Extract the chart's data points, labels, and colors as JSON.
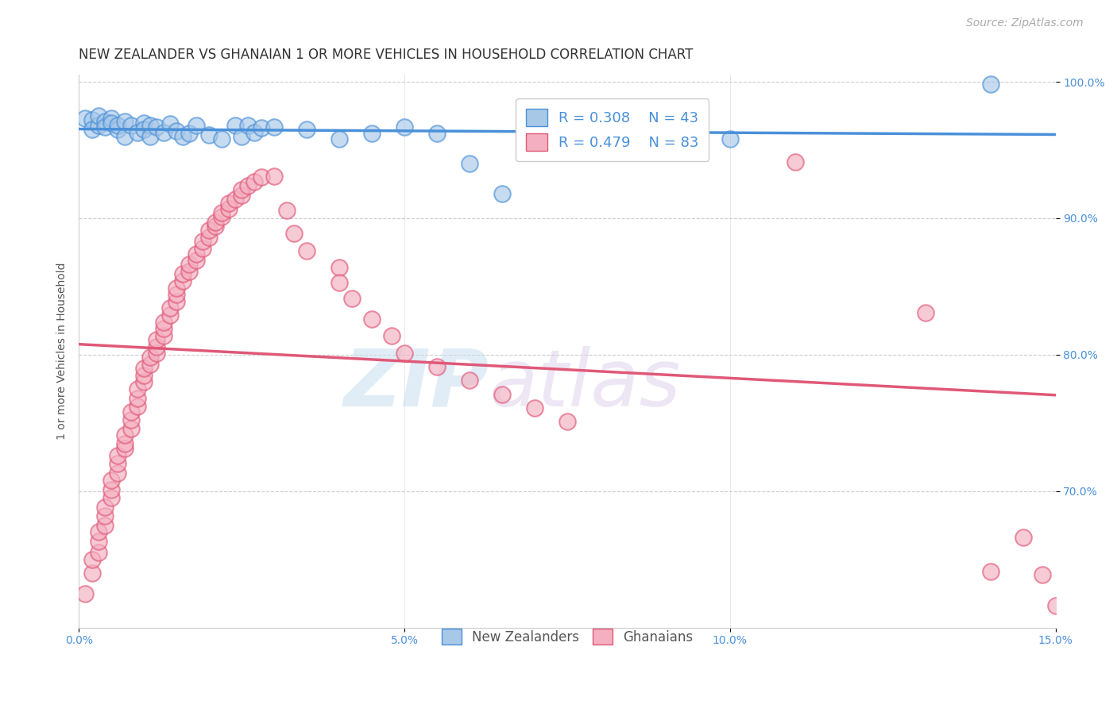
{
  "title": "NEW ZEALANDER VS GHANAIAN 1 OR MORE VEHICLES IN HOUSEHOLD CORRELATION CHART",
  "source": "Source: ZipAtlas.com",
  "ylabel": "1 or more Vehicles in Household",
  "watermark_zip": "ZIP",
  "watermark_atlas": "atlas",
  "legend_nz": "New Zealanders",
  "legend_gh": "Ghanaians",
  "nz_R": "0.308",
  "nz_N": "43",
  "gh_R": "0.479",
  "gh_N": "83",
  "nz_color": "#a8c8e8",
  "gh_color": "#f4b0c0",
  "nz_line_color": "#4a90d9",
  "gh_line_color": "#e05878",
  "background_color": "#ffffff",
  "nz_scatter": [
    [
      0.001,
      0.973
    ],
    [
      0.002,
      0.972
    ],
    [
      0.002,
      0.965
    ],
    [
      0.003,
      0.968
    ],
    [
      0.003,
      0.975
    ],
    [
      0.004,
      0.971
    ],
    [
      0.004,
      0.967
    ],
    [
      0.005,
      0.973
    ],
    [
      0.005,
      0.97
    ],
    [
      0.006,
      0.965
    ],
    [
      0.006,
      0.968
    ],
    [
      0.007,
      0.971
    ],
    [
      0.007,
      0.96
    ],
    [
      0.008,
      0.968
    ],
    [
      0.009,
      0.963
    ],
    [
      0.01,
      0.97
    ],
    [
      0.01,
      0.965
    ],
    [
      0.011,
      0.968
    ],
    [
      0.011,
      0.96
    ],
    [
      0.012,
      0.967
    ],
    [
      0.013,
      0.963
    ],
    [
      0.014,
      0.969
    ],
    [
      0.015,
      0.964
    ],
    [
      0.016,
      0.96
    ],
    [
      0.017,
      0.962
    ],
    [
      0.018,
      0.968
    ],
    [
      0.02,
      0.961
    ],
    [
      0.022,
      0.958
    ],
    [
      0.024,
      0.968
    ],
    [
      0.025,
      0.96
    ],
    [
      0.026,
      0.968
    ],
    [
      0.027,
      0.963
    ],
    [
      0.028,
      0.966
    ],
    [
      0.03,
      0.967
    ],
    [
      0.035,
      0.965
    ],
    [
      0.04,
      0.958
    ],
    [
      0.045,
      0.962
    ],
    [
      0.05,
      0.967
    ],
    [
      0.055,
      0.962
    ],
    [
      0.06,
      0.94
    ],
    [
      0.065,
      0.918
    ],
    [
      0.1,
      0.958
    ],
    [
      0.14,
      0.998
    ]
  ],
  "gh_scatter": [
    [
      0.001,
      0.625
    ],
    [
      0.002,
      0.64
    ],
    [
      0.002,
      0.65
    ],
    [
      0.003,
      0.655
    ],
    [
      0.003,
      0.663
    ],
    [
      0.003,
      0.67
    ],
    [
      0.004,
      0.675
    ],
    [
      0.004,
      0.682
    ],
    [
      0.004,
      0.688
    ],
    [
      0.005,
      0.695
    ],
    [
      0.005,
      0.701
    ],
    [
      0.005,
      0.708
    ],
    [
      0.006,
      0.713
    ],
    [
      0.006,
      0.72
    ],
    [
      0.006,
      0.726
    ],
    [
      0.007,
      0.731
    ],
    [
      0.007,
      0.735
    ],
    [
      0.007,
      0.741
    ],
    [
      0.008,
      0.746
    ],
    [
      0.008,
      0.752
    ],
    [
      0.008,
      0.758
    ],
    [
      0.009,
      0.762
    ],
    [
      0.009,
      0.768
    ],
    [
      0.009,
      0.775
    ],
    [
      0.01,
      0.78
    ],
    [
      0.01,
      0.785
    ],
    [
      0.01,
      0.79
    ],
    [
      0.011,
      0.793
    ],
    [
      0.011,
      0.798
    ],
    [
      0.012,
      0.801
    ],
    [
      0.012,
      0.806
    ],
    [
      0.012,
      0.811
    ],
    [
      0.013,
      0.814
    ],
    [
      0.013,
      0.819
    ],
    [
      0.013,
      0.824
    ],
    [
      0.014,
      0.829
    ],
    [
      0.014,
      0.834
    ],
    [
      0.015,
      0.839
    ],
    [
      0.015,
      0.844
    ],
    [
      0.015,
      0.849
    ],
    [
      0.016,
      0.854
    ],
    [
      0.016,
      0.859
    ],
    [
      0.017,
      0.861
    ],
    [
      0.017,
      0.866
    ],
    [
      0.018,
      0.869
    ],
    [
      0.018,
      0.874
    ],
    [
      0.019,
      0.878
    ],
    [
      0.019,
      0.883
    ],
    [
      0.02,
      0.886
    ],
    [
      0.02,
      0.891
    ],
    [
      0.021,
      0.894
    ],
    [
      0.021,
      0.897
    ],
    [
      0.022,
      0.901
    ],
    [
      0.022,
      0.904
    ],
    [
      0.023,
      0.907
    ],
    [
      0.023,
      0.911
    ],
    [
      0.024,
      0.914
    ],
    [
      0.025,
      0.917
    ],
    [
      0.025,
      0.921
    ],
    [
      0.026,
      0.924
    ],
    [
      0.027,
      0.927
    ],
    [
      0.028,
      0.93
    ],
    [
      0.03,
      0.931
    ],
    [
      0.032,
      0.906
    ],
    [
      0.033,
      0.889
    ],
    [
      0.035,
      0.876
    ],
    [
      0.04,
      0.864
    ],
    [
      0.04,
      0.853
    ],
    [
      0.042,
      0.841
    ],
    [
      0.045,
      0.826
    ],
    [
      0.048,
      0.814
    ],
    [
      0.05,
      0.801
    ],
    [
      0.055,
      0.791
    ],
    [
      0.06,
      0.781
    ],
    [
      0.065,
      0.771
    ],
    [
      0.07,
      0.761
    ],
    [
      0.075,
      0.751
    ],
    [
      0.11,
      0.941
    ],
    [
      0.13,
      0.831
    ],
    [
      0.14,
      0.641
    ],
    [
      0.145,
      0.666
    ],
    [
      0.148,
      0.639
    ],
    [
      0.15,
      0.616
    ]
  ],
  "xlim": [
    0,
    0.15
  ],
  "ylim": [
    0.6,
    1.005
  ],
  "xticks": [
    0.0,
    0.05,
    0.1,
    0.15
  ],
  "xticklabels": [
    "0.0%",
    "5.0%",
    "10.0%",
    "15.0%"
  ],
  "yticks": [
    0.7,
    0.8,
    0.9,
    1.0
  ],
  "yticklabels": [
    "70.0%",
    "80.0%",
    "90.0%",
    "100.0%"
  ],
  "title_fontsize": 12,
  "source_fontsize": 10,
  "axis_fontsize": 10,
  "tick_color": "#4a90d9"
}
